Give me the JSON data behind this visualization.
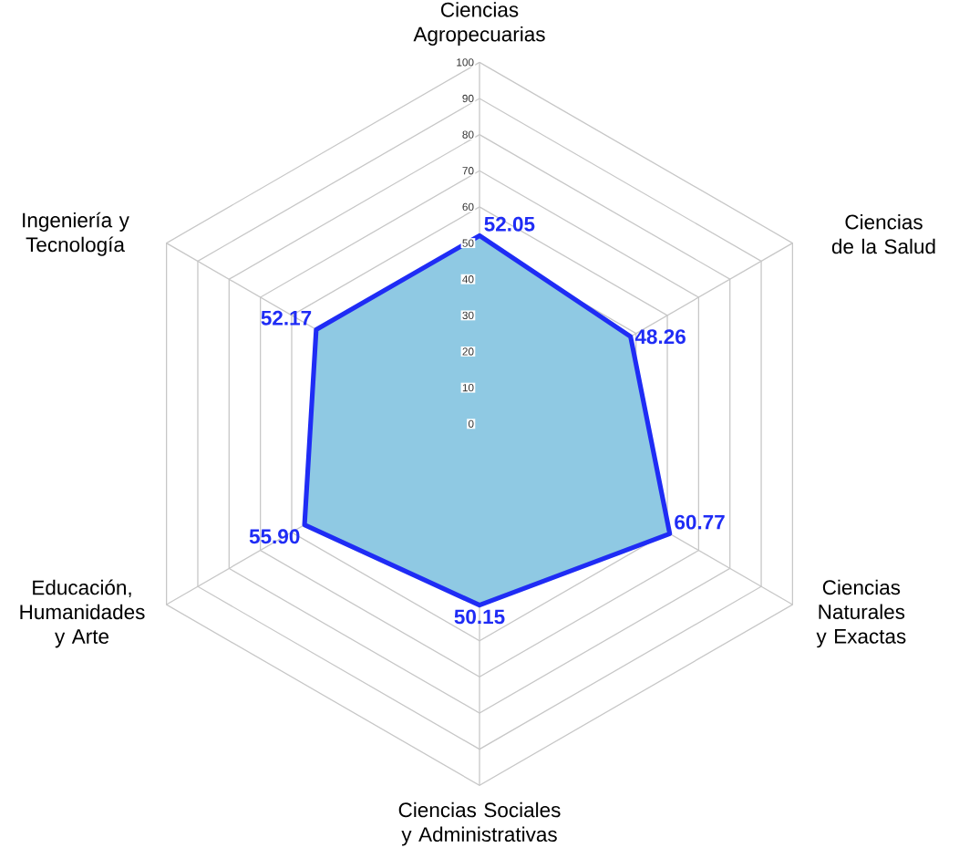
{
  "chart_data": {
    "type": "radar",
    "categories": [
      "Ciencias Agropecuarias",
      "Ciencias de la Salud",
      "Ciencias Naturales y Exactas",
      "Ciencias Sociales y Administrativas",
      "Educación, Humanidades y Arte",
      "Ingeniería y Tecnología"
    ],
    "series": [
      {
        "color": "#1f2cf5",
        "values": [
          52.05,
          48.26,
          60.77,
          50.15,
          55.9,
          52.17
        ],
        "value_labels": [
          "52.05",
          "48.26",
          "60.77",
          "50.15",
          "55.90",
          "52.17"
        ]
      }
    ],
    "ylim": [
      0,
      100
    ],
    "yticks": [
      0,
      10,
      20,
      30,
      40,
      50,
      60,
      70,
      80,
      90,
      100
    ],
    "grid": true,
    "marker": "none"
  }
}
